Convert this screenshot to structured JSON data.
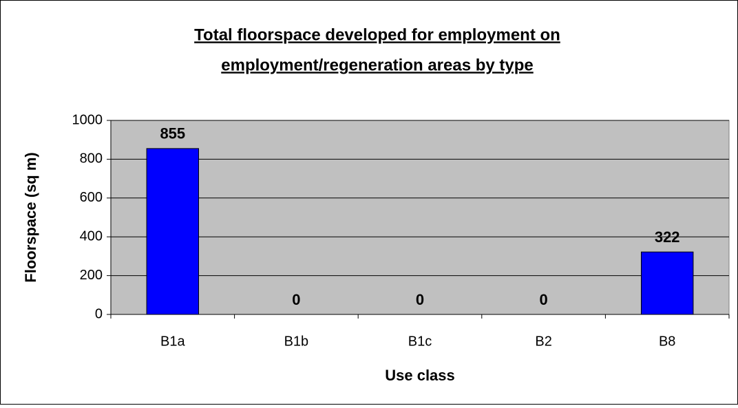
{
  "chart_data": {
    "type": "bar",
    "title": [
      "Total floorspace developed for employment on",
      "employment/regeneration areas by type"
    ],
    "x_label": "Use class",
    "y_label": "Floorspace (sq m)",
    "categories": [
      "B1a",
      "B1b",
      "B1c",
      "B2",
      "B8"
    ],
    "values": [
      855,
      0,
      0,
      0,
      322
    ],
    "color": "#0000ff",
    "ylim": [
      0,
      1000
    ],
    "yticks": [
      0,
      200,
      400,
      600,
      800,
      1000
    ],
    "grid": true,
    "data_labels": true
  }
}
